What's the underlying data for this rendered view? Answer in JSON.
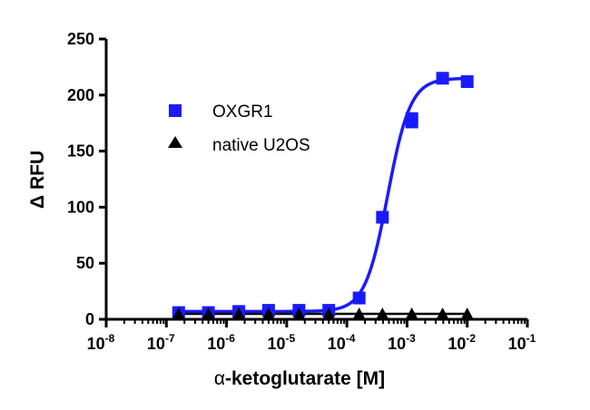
{
  "chart_data": {
    "type": "scatter",
    "x_scale": "log",
    "xlim_log10": [
      -8,
      -1
    ],
    "ylim": [
      0,
      250
    ],
    "xlabel_prefix": "α",
    "xlabel": "-ketoglutarate [M]",
    "ylabel_prefix": "Δ",
    "ylabel": "RFU",
    "x_tick_base": "10",
    "x_tick_exponents": [
      "-8",
      "-7",
      "-6",
      "-5",
      "-4",
      "-3",
      "-2",
      "-1"
    ],
    "y_ticks": [
      "0",
      "50",
      "100",
      "150",
      "200",
      "250"
    ],
    "grid": false,
    "legend_position": "upper-left inside plot",
    "series": [
      {
        "name": "OXGR1",
        "color": "#1a1aff",
        "marker": "square",
        "fit": "sigmoidal dose-response",
        "x": [
          1.6e-07,
          5e-07,
          1.6e-06,
          5e-06,
          1.6e-05,
          5e-05,
          0.00016,
          0.00039,
          0.0012,
          0.0012,
          0.0039,
          0.01
        ],
        "y": [
          6,
          6,
          7,
          8,
          8,
          8,
          19,
          91,
          176,
          179,
          215,
          212
        ],
        "fit_params": {
          "bottom": 7,
          "top": 215,
          "log_ec50": -3.32,
          "hill": 2.3
        }
      },
      {
        "name": "native U2OS",
        "color": "#000000",
        "marker": "triangle",
        "fit": "flat line",
        "x": [
          1.6e-07,
          5e-07,
          1.6e-06,
          5e-06,
          1.6e-05,
          5e-05,
          0.00016,
          0.00039,
          0.0012,
          0.0039,
          0.01
        ],
        "y": [
          4,
          4,
          4,
          4,
          4,
          4,
          4,
          4,
          4,
          4,
          4
        ]
      }
    ]
  }
}
